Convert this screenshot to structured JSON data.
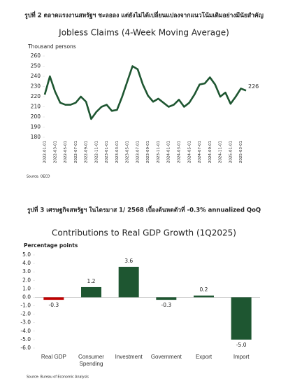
{
  "document": {
    "caption_1": "รูปที่ 2 ตลาดแรงงานสหรัฐฯ ชะลอลง แต่ยังไม่ได้เปลี่ยนแปลงจากแนวโน้มเดิมอย่างมีนัยสำคัญ",
    "caption_2": "รูปที่ 3 เศรษฐกิจสหรัฐฯ ในไตรมาส 1/ 2568 เบื้องต้นหดตัวที่ -0.3% annualized QoQ"
  },
  "chart_data": [
    {
      "type": "line",
      "title": "Jobless Claims (4-Week Moving Average)",
      "y_label": "Thousand persons",
      "source": "Source: OECD",
      "color": "#1e5631",
      "categories": [
        "2022-01-01",
        null,
        "2022-03-01",
        null,
        "2022-05-01",
        null,
        "2022-07-01",
        null,
        "2022-09-01",
        null,
        "2022-11-01",
        null,
        "2023-01-01",
        null,
        "2023-03-01",
        null,
        "2023-05-01",
        null,
        "2023-07-01",
        null,
        "2023-09-01",
        null,
        "2023-11-01",
        null,
        "2024-01-01",
        null,
        "2024-03-01",
        null,
        "2024-05-01",
        null,
        "2024-07-01",
        null,
        "2024-09-01",
        null,
        "2024-11-01",
        null,
        "2025-01-01",
        null,
        "2025-03-01",
        null
      ],
      "values": [
        222,
        240,
        225,
        214,
        212,
        212,
        214,
        220,
        215,
        198,
        205,
        210,
        212,
        206,
        207,
        220,
        235,
        250,
        247,
        232,
        221,
        215,
        218,
        214,
        210,
        212,
        217,
        210,
        214,
        222,
        232,
        233,
        239,
        232,
        220,
        224,
        213,
        220,
        228,
        226
      ],
      "ylim": [
        180,
        260
      ],
      "yticks": [
        180,
        190,
        200,
        210,
        220,
        230,
        240,
        250,
        260
      ]
    },
    {
      "type": "bar",
      "title": "Contributions to Real GDP Growth (1Q2025)",
      "y_label": "Percentage points",
      "source": "Source: Bureau of Economic Analysis",
      "categories": [
        "Real GDP",
        "Consumer Spending",
        "Investment",
        "Government",
        "Export",
        "Import"
      ],
      "values": [
        -0.3,
        1.2,
        3.6,
        -0.3,
        0.2,
        -5.0
      ],
      "value_labels": [
        "-0.3",
        "1.2",
        "3.6",
        "-0.3",
        "0.2",
        "-5.0"
      ],
      "colors": [
        "#c00000",
        "#1e5631",
        "#1e5631",
        "#1e5631",
        "#1e5631",
        "#1e5631"
      ],
      "ylim": [
        -6,
        5
      ],
      "yticks": [
        {
          "value": 5,
          "label": "5.0"
        },
        {
          "value": 4,
          "label": "4.0"
        },
        {
          "value": 3,
          "label": "3.0"
        },
        {
          "value": 2,
          "label": "2.0"
        },
        {
          "value": 1,
          "label": "1.0"
        },
        {
          "value": 0,
          "label": "0.0"
        },
        {
          "value": -1,
          "label": "-1.0"
        },
        {
          "value": -2,
          "label": "-2.0"
        },
        {
          "value": -3,
          "label": "-3.0"
        },
        {
          "value": -4,
          "label": "-4.0"
        },
        {
          "value": -5,
          "label": "-5.0"
        },
        {
          "value": -6,
          "label": "-6.0"
        }
      ]
    }
  ]
}
